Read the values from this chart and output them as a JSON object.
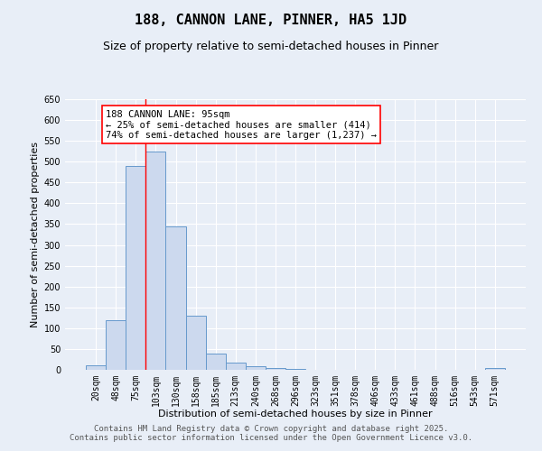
{
  "title": "188, CANNON LANE, PINNER, HA5 1JD",
  "subtitle": "Size of property relative to semi-detached houses in Pinner",
  "xlabel": "Distribution of semi-detached houses by size in Pinner",
  "ylabel": "Number of semi-detached properties",
  "bar_color": "#ccd9ee",
  "bar_edge_color": "#6699cc",
  "bg_color": "#e8eef7",
  "grid_color": "#ffffff",
  "categories": [
    "20sqm",
    "48sqm",
    "75sqm",
    "103sqm",
    "130sqm",
    "158sqm",
    "185sqm",
    "213sqm",
    "240sqm",
    "268sqm",
    "296sqm",
    "323sqm",
    "351sqm",
    "378sqm",
    "406sqm",
    "433sqm",
    "461sqm",
    "488sqm",
    "516sqm",
    "543sqm",
    "571sqm"
  ],
  "values": [
    10,
    120,
    490,
    525,
    345,
    130,
    40,
    17,
    8,
    4,
    2,
    1,
    1,
    0,
    0,
    0,
    0,
    0,
    0,
    0,
    5
  ],
  "ylim": [
    0,
    650
  ],
  "yticks": [
    0,
    50,
    100,
    150,
    200,
    250,
    300,
    350,
    400,
    450,
    500,
    550,
    600,
    650
  ],
  "vline_x_index": 2,
  "annotation_title": "188 CANNON LANE: 95sqm",
  "annotation_line1": "← 25% of semi-detached houses are smaller (414)",
  "annotation_line2": "74% of semi-detached houses are larger (1,237) →",
  "footer_line1": "Contains HM Land Registry data © Crown copyright and database right 2025.",
  "footer_line2": "Contains public sector information licensed under the Open Government Licence v3.0.",
  "title_fontsize": 11,
  "subtitle_fontsize": 9,
  "axis_label_fontsize": 8,
  "tick_fontsize": 7,
  "annotation_fontsize": 7.5,
  "footer_fontsize": 6.5
}
